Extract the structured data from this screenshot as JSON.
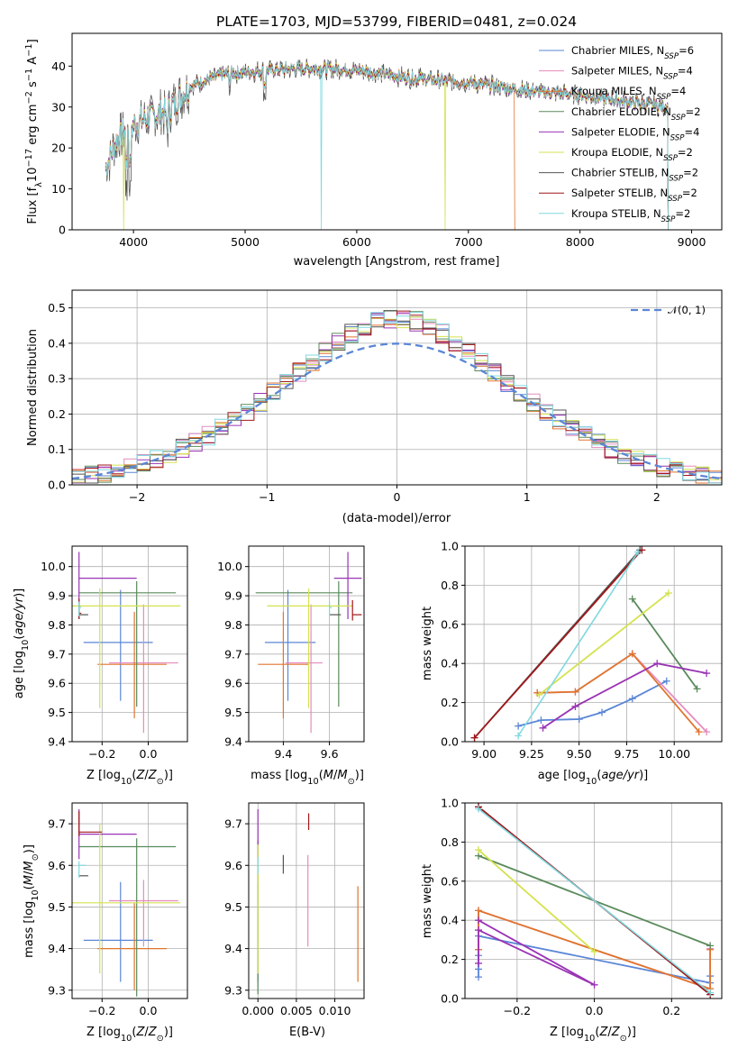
{
  "figure": {
    "title": "PLATE=1703, MJD=53799, FIBERID=0481, z=0.024"
  },
  "colors": {
    "Chabrier MILES": "#5b86d6",
    "Salpeter MILES": "#e58bbd",
    "Kroupa MILES": "#e0752d",
    "Chabrier ELODIE": "#5a8a5c",
    "Salpeter ELODIE": "#9a33b5",
    "Kroupa ELODIE": "#d4e24f",
    "Chabrier STELIB": "#555555",
    "Salpeter STELIB": "#a0171a",
    "Kroupa STELIB": "#7fd9df"
  },
  "chart_data": [
    {
      "id": "spectrum",
      "type": "line",
      "title": "PLATE=1703, MJD=53799, FIBERID=0481, z=0.024",
      "xlabel": "wavelength [Angstrom, rest frame]",
      "ylabel": "Flux [f_λ 10^-17 erg cm^-2 s^-1 A^-1]",
      "xlim": [
        3450,
        9270
      ],
      "ylim": [
        0,
        48
      ],
      "xticks": [
        4000,
        5000,
        6000,
        7000,
        8000,
        9000
      ],
      "yticks": [
        0,
        10,
        20,
        30,
        40
      ],
      "grid": false,
      "legend_position": "top-right",
      "legend": [
        "Chabrier MILES, N_SSP=6",
        "Salpeter MILES, N_SSP=4",
        "Kroupa MILES, N_SSP=4",
        "Chabrier ELODIE, N_SSP=2",
        "Salpeter ELODIE, N_SSP=4",
        "Kroupa ELODIE, N_SSP=2",
        "Chabrier STELIB, N_SSP=2",
        "Salpeter STELIB, N_SSP=2",
        "Kroupa STELIB, N_SSP=2"
      ],
      "continuum": [
        [
          3750,
          15
        ],
        [
          3850,
          22
        ],
        [
          3950,
          25
        ],
        [
          4100,
          27
        ],
        [
          4300,
          29
        ],
        [
          4500,
          35
        ],
        [
          4800,
          38
        ],
        [
          5200,
          39
        ],
        [
          5600,
          39.5
        ],
        [
          6000,
          39
        ],
        [
          6500,
          37
        ],
        [
          7000,
          36
        ],
        [
          7500,
          34
        ],
        [
          8000,
          33
        ],
        [
          8500,
          31
        ],
        [
          8800,
          30
        ]
      ],
      "features": [
        {
          "series": "Kroupa STELIB",
          "wavelength": 5680,
          "min_flux": 0
        },
        {
          "series": "Kroupa ELODIE",
          "wavelength": 6790,
          "min_flux": 0
        },
        {
          "series": "Kroupa ELODIE",
          "wavelength": 3910,
          "min_flux": 0
        },
        {
          "series": "Kroupa MILES",
          "end_wavelength": 7420
        }
      ]
    },
    {
      "id": "residuals",
      "type": "histogram",
      "xlabel": "(data-model)/error",
      "ylabel": "Normed distribution",
      "xlim": [
        -2.5,
        2.5
      ],
      "ylim": [
        0,
        0.55
      ],
      "xticks": [
        -2,
        -1,
        0,
        1,
        2
      ],
      "yticks": [
        0.0,
        0.1,
        0.2,
        0.3,
        0.4,
        0.5
      ],
      "grid": true,
      "legend_position": "top-right",
      "legend": [
        "𝒩(0, 1)"
      ],
      "bin_width": 0.1
    },
    {
      "id": "age_vs_Z",
      "type": "errorbar",
      "xlabel": "Z [log10(Z/Z⊙)]",
      "ylabel": "age [log10(age/yr)]",
      "xlim": [
        -0.33,
        0.17
      ],
      "ylim": [
        9.4,
        10.07
      ],
      "xticks": [
        -0.2,
        0.0
      ],
      "yticks": [
        9.4,
        9.5,
        9.6,
        9.7,
        9.8,
        9.9,
        10.0
      ],
      "grid": true,
      "points": [
        {
          "series": "Chabrier MILES",
          "x": -0.12,
          "xerr": [
            0.16,
            0.14
          ],
          "y": 9.74,
          "yerr": [
            0.2,
            0.18
          ]
        },
        {
          "series": "Salpeter MILES",
          "x": -0.02,
          "xerr": [
            0.15,
            0.15
          ],
          "y": 9.67,
          "yerr": [
            0.24,
            0.2
          ]
        },
        {
          "series": "Kroupa MILES",
          "x": -0.06,
          "xerr": [
            0.16,
            0.14
          ],
          "y": 9.665,
          "yerr": [
            0.185,
            0.18
          ]
        },
        {
          "series": "Chabrier ELODIE",
          "x": -0.05,
          "xerr": [
            0.25,
            0.17
          ],
          "y": 9.91,
          "yerr": [
            0.39,
            0.04
          ]
        },
        {
          "series": "Salpeter ELODIE",
          "x": -0.3,
          "xerr": [
            0.0,
            0.25
          ],
          "y": 9.96,
          "yerr": [
            0.14,
            0.09
          ]
        },
        {
          "series": "Kroupa ELODIE",
          "x": -0.21,
          "xerr": [
            0.12,
            0.35
          ],
          "y": 9.865,
          "yerr": [
            0.35,
            0.06
          ]
        },
        {
          "series": "Chabrier STELIB",
          "x": -0.3,
          "xerr": [
            0.0,
            0.04
          ],
          "y": 9.835,
          "yerr": [
            0.0,
            0.0
          ]
        },
        {
          "series": "Salpeter STELIB",
          "x": -0.3,
          "xerr": [
            0.0,
            0.01
          ],
          "y": 9.84,
          "yerr": [
            0.02,
            0.05
          ]
        },
        {
          "series": "Kroupa STELIB",
          "x": -0.3,
          "xerr": [
            0.0,
            0.01
          ],
          "y": 9.86,
          "yerr": [
            0.03,
            0.02
          ]
        }
      ]
    },
    {
      "id": "age_vs_mass",
      "type": "errorbar",
      "xlabel": "mass [log10(M/M⊙)]",
      "ylabel": "",
      "xlim": [
        9.25,
        9.75
      ],
      "ylim": [
        9.4,
        10.07
      ],
      "xticks": [
        9.4,
        9.6
      ],
      "yticks": [
        9.4,
        9.5,
        9.6,
        9.7,
        9.8,
        9.9,
        10.0
      ],
      "grid": true,
      "points": [
        {
          "series": "Chabrier MILES",
          "x": 9.42,
          "xerr": [
            0.1,
            0.12
          ],
          "y": 9.74,
          "yerr": [
            0.2,
            0.18
          ]
        },
        {
          "series": "Salpeter MILES",
          "x": 9.52,
          "xerr": [
            0.11,
            0.05
          ],
          "y": 9.67,
          "yerr": [
            0.24,
            0.2
          ]
        },
        {
          "series": "Kroupa MILES",
          "x": 9.4,
          "xerr": [
            0.11,
            0.11
          ],
          "y": 9.665,
          "yerr": [
            0.185,
            0.18
          ]
        },
        {
          "series": "Chabrier ELODIE",
          "x": 9.64,
          "xerr": [
            0.36,
            0.06
          ],
          "y": 9.91,
          "yerr": [
            0.39,
            0.04
          ]
        },
        {
          "series": "Salpeter ELODIE",
          "x": 9.68,
          "xerr": [
            0.06,
            0.06
          ],
          "y": 9.96,
          "yerr": [
            0.14,
            0.09
          ]
        },
        {
          "series": "Kroupa ELODIE",
          "x": 9.51,
          "xerr": [
            0.18,
            0.19
          ],
          "y": 9.865,
          "yerr": [
            0.35,
            0.06
          ]
        },
        {
          "series": "Chabrier STELIB",
          "x": 9.6,
          "xerr": [
            0.0,
            0.05
          ],
          "y": 9.835,
          "yerr": [
            0.0,
            0.0
          ]
        },
        {
          "series": "Salpeter STELIB",
          "x": 9.7,
          "xerr": [
            0.0,
            0.04
          ],
          "y": 9.835,
          "yerr": [
            0.02,
            0.05
          ]
        },
        {
          "series": "Kroupa STELIB",
          "x": 9.6,
          "xerr": [
            0.0,
            0.01
          ],
          "y": 9.86,
          "yerr": [
            0.03,
            0.02
          ]
        }
      ]
    },
    {
      "id": "weight_vs_age",
      "type": "line",
      "xlabel": "age [log10(age/yr)]",
      "ylabel": "mass weight",
      "xlim": [
        8.9,
        10.25
      ],
      "ylim": [
        0.0,
        1.0
      ],
      "xticks": [
        9.0,
        9.25,
        9.5,
        9.75,
        10.0
      ],
      "yticks": [
        0.0,
        0.2,
        0.4,
        0.6,
        0.8,
        1.0
      ],
      "grid": true,
      "series": [
        {
          "series": "Chabrier MILES",
          "x": [
            9.18,
            9.3,
            9.5,
            9.62,
            9.78,
            9.96
          ],
          "y": [
            0.08,
            0.11,
            0.115,
            0.15,
            0.22,
            0.31
          ]
        },
        {
          "series": "Salpeter MILES",
          "x": [
            9.28,
            9.48,
            9.78,
            10.17
          ],
          "y": [
            0.25,
            0.255,
            0.45,
            0.05
          ]
        },
        {
          "series": "Kroupa MILES",
          "x": [
            9.28,
            9.48,
            9.78,
            10.13
          ],
          "y": [
            0.25,
            0.255,
            0.45,
            0.05
          ]
        },
        {
          "series": "Chabrier ELODIE",
          "x": [
            9.78,
            10.12
          ],
          "y": [
            0.73,
            0.27
          ]
        },
        {
          "series": "Salpeter ELODIE",
          "x": [
            9.31,
            9.48,
            9.91,
            10.17
          ],
          "y": [
            0.07,
            0.18,
            0.4,
            0.35
          ]
        },
        {
          "series": "Kroupa ELODIE",
          "x": [
            9.29,
            9.97
          ],
          "y": [
            0.24,
            0.76
          ]
        },
        {
          "series": "Chabrier STELIB",
          "x": [
            8.95,
            9.82
          ],
          "y": [
            0.02,
            0.98
          ]
        },
        {
          "series": "Salpeter STELIB",
          "x": [
            8.95,
            9.83
          ],
          "y": [
            0.02,
            0.98
          ]
        },
        {
          "series": "Kroupa STELIB",
          "x": [
            9.18,
            9.81
          ],
          "y": [
            0.03,
            0.97
          ]
        }
      ]
    },
    {
      "id": "mass_vs_Z",
      "type": "errorbar",
      "xlabel": "Z [log10(Z/Z⊙)]",
      "ylabel": "mass [log10(M/M⊙)]",
      "xlim": [
        -0.33,
        0.17
      ],
      "ylim": [
        9.28,
        9.75
      ],
      "xticks": [
        -0.2,
        0.0
      ],
      "yticks": [
        9.3,
        9.4,
        9.5,
        9.6,
        9.7
      ],
      "grid": true,
      "points": [
        {
          "series": "Chabrier MILES",
          "x": -0.12,
          "xerr": [
            0.16,
            0.14
          ],
          "y": 9.42,
          "yerr": [
            0.1,
            0.14
          ]
        },
        {
          "series": "Salpeter MILES",
          "x": -0.02,
          "xerr": [
            0.15,
            0.15
          ],
          "y": 9.515,
          "yerr": [
            0.11,
            0.05
          ]
        },
        {
          "series": "Kroupa MILES",
          "x": -0.06,
          "xerr": [
            0.16,
            0.14
          ],
          "y": 9.4,
          "yerr": [
            0.1,
            0.11
          ]
        },
        {
          "series": "Chabrier ELODIE",
          "x": -0.05,
          "xerr": [
            0.25,
            0.17
          ],
          "y": 9.645,
          "yerr": [
            0.36,
            0.02
          ]
        },
        {
          "series": "Salpeter ELODIE",
          "x": -0.3,
          "xerr": [
            0.0,
            0.25
          ],
          "y": 9.675,
          "yerr": [
            0.06,
            0.06
          ]
        },
        {
          "series": "Kroupa ELODIE",
          "x": -0.21,
          "xerr": [
            0.12,
            0.35
          ],
          "y": 9.51,
          "yerr": [
            0.17,
            0.19
          ]
        },
        {
          "series": "Chabrier STELIB",
          "x": -0.3,
          "xerr": [
            0.0,
            0.04
          ],
          "y": 9.575,
          "yerr": [
            0.0,
            0.0
          ]
        },
        {
          "series": "Salpeter STELIB",
          "x": -0.3,
          "xerr": [
            0.0,
            0.1
          ],
          "y": 9.68,
          "yerr": [
            0.01,
            0.05
          ]
        },
        {
          "series": "Kroupa STELIB",
          "x": -0.3,
          "xerr": [
            0.0,
            0.03
          ],
          "y": 9.6,
          "yerr": [
            0.03,
            0.01
          ]
        }
      ]
    },
    {
      "id": "mass_vs_EBV",
      "type": "errorbar",
      "xlabel": "E(B-V)",
      "ylabel": "",
      "xlim": [
        -0.0012,
        0.0138
      ],
      "ylim": [
        9.28,
        9.75
      ],
      "xticks": [
        0.0,
        0.005,
        0.01
      ],
      "xticklabels": [
        "0.000",
        "0.005",
        "0.010"
      ],
      "yticks": [
        9.3,
        9.4,
        9.5,
        9.6,
        9.7
      ],
      "grid": true,
      "points": [
        {
          "series": "Chabrier MILES",
          "x": 0.0,
          "y": 9.42,
          "yerr": [
            0.1,
            0.14
          ]
        },
        {
          "series": "Salpeter MILES",
          "x": 0.0065,
          "y": 9.515,
          "yerr": [
            0.11,
            0.11
          ]
        },
        {
          "series": "Kroupa MILES",
          "x": 0.013,
          "y": 9.43,
          "yerr": [
            0.11,
            0.12
          ]
        },
        {
          "series": "Chabrier ELODIE",
          "x": 0.0,
          "y": 9.6,
          "yerr": [
            0.31,
            0.06
          ]
        },
        {
          "series": "Salpeter ELODIE",
          "x": 0.0,
          "y": 9.675,
          "yerr": [
            0.06,
            0.06
          ]
        },
        {
          "series": "Kroupa ELODIE",
          "x": 0.0,
          "y": 9.51,
          "yerr": [
            0.17,
            0.14
          ]
        },
        {
          "series": "Chabrier STELIB",
          "x": 0.0033,
          "y": 9.6,
          "yerr": [
            0.02,
            0.025
          ]
        },
        {
          "series": "Salpeter STELIB",
          "x": 0.0066,
          "y": 9.705,
          "yerr": [
            0.02,
            0.02
          ]
        },
        {
          "series": "Kroupa STELIB",
          "x": 0.0,
          "y": 9.6,
          "yerr": [
            0.02,
            0.02
          ]
        }
      ]
    },
    {
      "id": "weight_vs_Z",
      "type": "line",
      "xlabel": "Z [log10(Z/Z⊙)]",
      "ylabel": "mass weight",
      "xlim": [
        -0.335,
        0.33
      ],
      "ylim": [
        0.0,
        1.0
      ],
      "xticks": [
        -0.2,
        0.0,
        0.2
      ],
      "yticks": [
        0.0,
        0.2,
        0.4,
        0.6,
        0.8,
        1.0
      ],
      "grid": true,
      "series": [
        {
          "series": "Chabrier MILES",
          "x": [
            -0.3,
            -0.3,
            -0.3,
            -0.3,
            0.3,
            0.3
          ],
          "y": [
            0.11,
            0.15,
            0.22,
            0.32,
            0.08,
            0.115
          ]
        },
        {
          "series": "Salpeter MILES",
          "x": [
            -0.3,
            -0.3,
            0.3,
            0.3
          ],
          "y": [
            0.25,
            0.45,
            0.05,
            0.255
          ]
        },
        {
          "series": "Kroupa MILES",
          "x": [
            -0.3,
            -0.3,
            0.3,
            0.3
          ],
          "y": [
            0.25,
            0.45,
            0.05,
            0.25
          ]
        },
        {
          "series": "Chabrier ELODIE",
          "x": [
            -0.3,
            0.3
          ],
          "y": [
            0.73,
            0.27
          ]
        },
        {
          "series": "Salpeter ELODIE",
          "x": [
            -0.3,
            -0.3,
            0.0,
            -0.3
          ],
          "y": [
            0.18,
            0.35,
            0.07,
            0.4
          ]
        },
        {
          "series": "Kroupa ELODIE",
          "x": [
            -0.3,
            0.0
          ],
          "y": [
            0.76,
            0.24
          ]
        },
        {
          "series": "Chabrier STELIB",
          "x": [
            -0.3,
            0.3
          ],
          "y": [
            0.98,
            0.02
          ]
        },
        {
          "series": "Salpeter STELIB",
          "x": [
            -0.3,
            0.3
          ],
          "y": [
            0.98,
            0.02
          ]
        },
        {
          "series": "Kroupa STELIB",
          "x": [
            -0.3,
            0.3
          ],
          "y": [
            0.97,
            0.03
          ]
        }
      ]
    }
  ]
}
